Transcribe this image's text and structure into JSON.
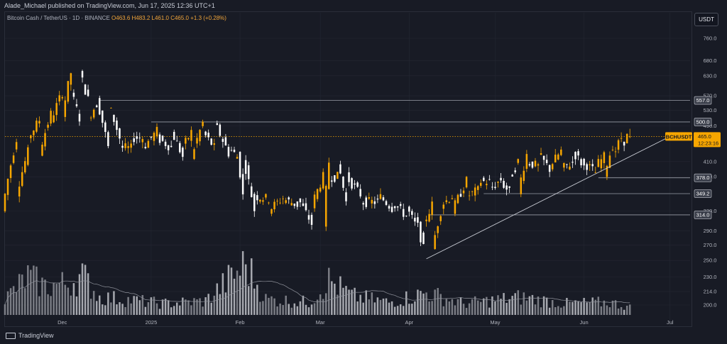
{
  "header": {
    "published": "Alade_Michael published on TradingView.com, Jun 17, 2025 12:36 UTC+1"
  },
  "legend": {
    "symbol": "Bitcoin Cash / TetherUS · 1D · BINANCE",
    "ohlc": "O463.6  H483.2  L461.0  C465.0  +1.3 (+0.28%)"
  },
  "currency_button": "USDT",
  "footer": {
    "brand": "TradingView"
  },
  "colors": {
    "up": "#f7a600",
    "down": "#ffffff",
    "background": "#181b25",
    "grid": "#242733",
    "level_line": "#9a9ea8",
    "trendline": "#c9ccd4",
    "price_badge": "#f7a600"
  },
  "chart_data": {
    "type": "candlestick",
    "timeframe": "1D",
    "x_range": [
      "2024-11-11",
      "2025-07-08"
    ],
    "y_ticks": [
      760,
      680,
      630,
      570,
      530,
      490,
      410,
      380,
      320,
      290,
      270,
      250,
      230,
      214,
      200
    ],
    "ylim": [
      190,
      800
    ],
    "y_scale": "log",
    "x_ticks": [
      {
        "label": "Dec",
        "date": "2024-12-01"
      },
      {
        "label": "2025",
        "date": "2025-01-01"
      },
      {
        "label": "Feb",
        "date": "2025-02-01"
      },
      {
        "label": "Mar",
        "date": "2025-03-01"
      },
      {
        "label": "Apr",
        "date": "2025-04-01"
      },
      {
        "label": "May",
        "date": "2025-05-01"
      },
      {
        "label": "Jun",
        "date": "2025-06-01"
      },
      {
        "label": "Jul",
        "date": "2025-07-01"
      }
    ],
    "horizontal_levels": [
      {
        "label": "557.0",
        "value": 557.0,
        "start_date": "2024-12-14"
      },
      {
        "label": "500.0",
        "value": 500.0,
        "start_date": "2025-01-01"
      },
      {
        "label": "378.0",
        "value": 378.0,
        "start_date": "2025-06-06"
      },
      {
        "label": "349.2",
        "value": 349.2,
        "start_date": "2025-04-27"
      },
      {
        "label": "314.0",
        "value": 314.0,
        "start_date": "2025-04-08"
      }
    ],
    "trendline": {
      "from": {
        "date": "2025-04-07",
        "value": 252
      },
      "to": {
        "date": "2025-07-01",
        "value": 465
      }
    },
    "last_price": {
      "symbol": "BCHUSDT",
      "value": 465.0,
      "display": "465.0",
      "countdown": "12:23:16"
    },
    "ohlc_anchors": [
      {
        "date": "2024-11-11",
        "o": 320,
        "c": 350
      },
      {
        "date": "2024-11-16",
        "o": 350,
        "c": 460
      },
      {
        "date": "2024-11-20",
        "o": 460,
        "c": 430
      },
      {
        "date": "2024-11-24",
        "o": 430,
        "c": 505
      },
      {
        "date": "2024-11-28",
        "o": 505,
        "c": 520
      },
      {
        "date": "2024-12-02",
        "o": 520,
        "c": 580
      },
      {
        "date": "2024-12-05",
        "o": 580,
        "c": 640
      },
      {
        "date": "2024-12-08",
        "o": 640,
        "c": 510
      },
      {
        "date": "2024-12-11",
        "o": 510,
        "c": 560
      },
      {
        "date": "2024-12-14",
        "o": 560,
        "c": 548
      },
      {
        "date": "2024-12-18",
        "o": 548,
        "c": 440
      },
      {
        "date": "2024-12-22",
        "o": 440,
        "c": 462
      },
      {
        "date": "2024-12-26",
        "o": 462,
        "c": 438
      },
      {
        "date": "2024-12-30",
        "o": 438,
        "c": 462
      },
      {
        "date": "2025-01-04",
        "o": 462,
        "c": 478
      },
      {
        "date": "2025-01-09",
        "o": 478,
        "c": 440
      },
      {
        "date": "2025-01-13",
        "o": 440,
        "c": 420
      },
      {
        "date": "2025-01-16",
        "o": 420,
        "c": 475
      },
      {
        "date": "2025-01-20",
        "o": 475,
        "c": 498
      },
      {
        "date": "2025-01-24",
        "o": 498,
        "c": 440
      },
      {
        "date": "2025-01-29",
        "o": 440,
        "c": 428
      },
      {
        "date": "2025-02-01",
        "o": 428,
        "c": 420
      },
      {
        "date": "2025-02-03",
        "o": 420,
        "c": 345
      },
      {
        "date": "2025-02-07",
        "o": 345,
        "c": 322
      },
      {
        "date": "2025-02-12",
        "o": 322,
        "c": 340
      },
      {
        "date": "2025-02-17",
        "o": 340,
        "c": 342
      },
      {
        "date": "2025-02-22",
        "o": 342,
        "c": 330
      },
      {
        "date": "2025-02-27",
        "o": 330,
        "c": 300
      },
      {
        "date": "2025-03-03",
        "o": 300,
        "c": 380
      },
      {
        "date": "2025-03-05",
        "o": 380,
        "c": 410
      },
      {
        "date": "2025-03-08",
        "o": 410,
        "c": 380
      },
      {
        "date": "2025-03-11",
        "o": 380,
        "c": 335
      },
      {
        "date": "2025-03-16",
        "o": 335,
        "c": 348
      },
      {
        "date": "2025-03-22",
        "o": 348,
        "c": 335
      },
      {
        "date": "2025-03-27",
        "o": 335,
        "c": 325
      },
      {
        "date": "2025-04-01",
        "o": 325,
        "c": 312
      },
      {
        "date": "2025-04-04",
        "o": 312,
        "c": 300
      },
      {
        "date": "2025-04-07",
        "o": 300,
        "c": 265
      },
      {
        "date": "2025-04-10",
        "o": 265,
        "c": 330
      },
      {
        "date": "2025-04-13",
        "o": 330,
        "c": 320
      },
      {
        "date": "2025-04-17",
        "o": 320,
        "c": 345
      },
      {
        "date": "2025-04-22",
        "o": 345,
        "c": 372
      },
      {
        "date": "2025-04-26",
        "o": 372,
        "c": 355
      },
      {
        "date": "2025-04-30",
        "o": 355,
        "c": 370
      },
      {
        "date": "2025-05-04",
        "o": 370,
        "c": 375
      },
      {
        "date": "2025-05-07",
        "o": 375,
        "c": 352
      },
      {
        "date": "2025-05-10",
        "o": 352,
        "c": 410
      },
      {
        "date": "2025-05-13",
        "o": 410,
        "c": 425
      },
      {
        "date": "2025-05-17",
        "o": 425,
        "c": 400
      },
      {
        "date": "2025-05-21",
        "o": 400,
        "c": 395
      },
      {
        "date": "2025-05-25",
        "o": 395,
        "c": 432
      },
      {
        "date": "2025-05-29",
        "o": 432,
        "c": 408
      },
      {
        "date": "2025-06-02",
        "o": 408,
        "c": 400
      },
      {
        "date": "2025-06-06",
        "o": 400,
        "c": 388
      },
      {
        "date": "2025-06-09",
        "o": 388,
        "c": 420
      },
      {
        "date": "2025-06-12",
        "o": 420,
        "c": 445
      },
      {
        "date": "2025-06-15",
        "o": 445,
        "c": 463
      },
      {
        "date": "2025-06-17",
        "o": 463.6,
        "c": 465.0
      }
    ],
    "volume_anchors": [
      {
        "date": "2024-11-11",
        "v": 0.25
      },
      {
        "date": "2024-11-19",
        "v": 0.6
      },
      {
        "date": "2024-11-25",
        "v": 0.45
      },
      {
        "date": "2024-12-03",
        "v": 0.5
      },
      {
        "date": "2024-12-08",
        "v": 0.62
      },
      {
        "date": "2024-12-14",
        "v": 0.28
      },
      {
        "date": "2024-12-22",
        "v": 0.25
      },
      {
        "date": "2025-01-05",
        "v": 0.18
      },
      {
        "date": "2025-01-20",
        "v": 0.22
      },
      {
        "date": "2025-02-03",
        "v": 0.8
      },
      {
        "date": "2025-02-10",
        "v": 0.25
      },
      {
        "date": "2025-02-25",
        "v": 0.2
      },
      {
        "date": "2025-03-04",
        "v": 0.55
      },
      {
        "date": "2025-03-12",
        "v": 0.3
      },
      {
        "date": "2025-03-25",
        "v": 0.2
      },
      {
        "date": "2025-04-07",
        "v": 0.35
      },
      {
        "date": "2025-04-20",
        "v": 0.18
      },
      {
        "date": "2025-05-10",
        "v": 0.28
      },
      {
        "date": "2025-05-25",
        "v": 0.18
      },
      {
        "date": "2025-06-10",
        "v": 0.2
      },
      {
        "date": "2025-06-17",
        "v": 0.12
      }
    ]
  }
}
